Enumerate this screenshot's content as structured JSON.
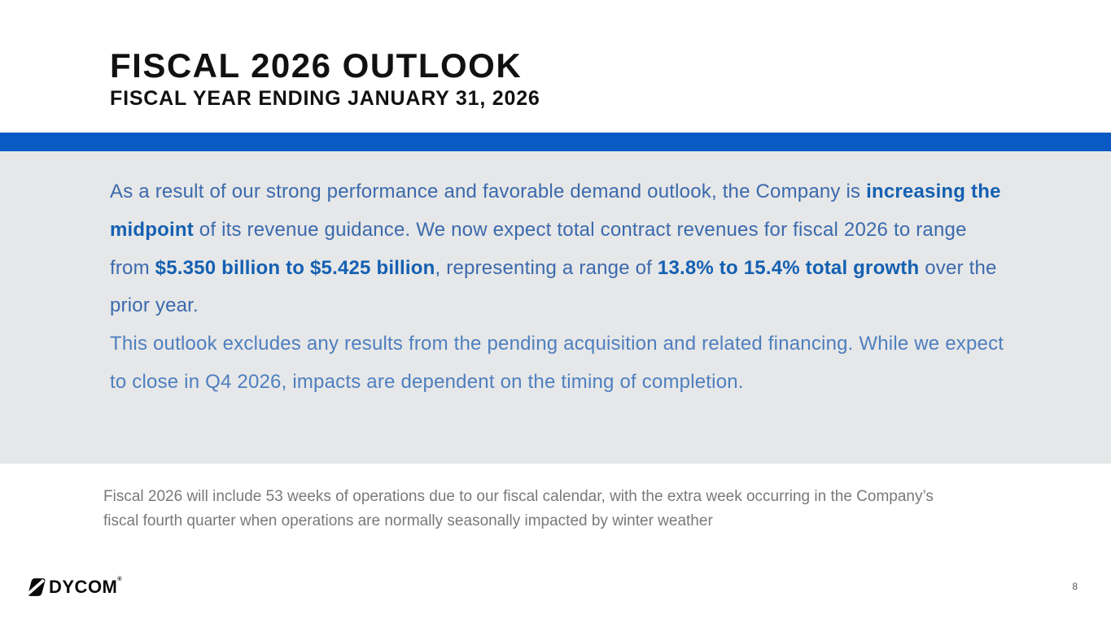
{
  "slide": {
    "title": "FISCAL 2026 OUTLOOK",
    "subtitle": "FISCAL YEAR ENDING JANUARY 31, 2026"
  },
  "highlight": {
    "paragraph1": [
      {
        "text": "As a result of our strong performance and favorable demand outlook, the Company is ",
        "bold": false
      },
      {
        "text": "increasing the midpoint",
        "bold": true
      },
      {
        "text": " of its revenue guidance. We now expect total contract revenues for fiscal 2026 to range from ",
        "bold": false
      },
      {
        "text": "$5.350 billion to $5.425 billion",
        "bold": true
      },
      {
        "text": ", representing a range of ",
        "bold": false
      },
      {
        "text": "13.8% to 15.4% total growth",
        "bold": true
      },
      {
        "text": " over the prior year.",
        "bold": false
      }
    ],
    "paragraph2": "This outlook excludes any results from the pending acquisition and related financing. While we expect to close in Q4 2026, impacts are dependent on the timing of completion."
  },
  "footnote": "Fiscal 2026 will include 53 weeks of operations due to our fiscal calendar, with the extra week occurring in the Company’s fiscal fourth quarter when operations are normally seasonally impacted by winter weather",
  "footer": {
    "logo_text": "DYCOM",
    "trademark": "®",
    "page_number": "8"
  },
  "colors": {
    "accent_bar": "#0a5ac4",
    "band_background": "#e6e7e8",
    "title_text": "#111111",
    "para1_text": "#3b6aad",
    "para1_bold": "#1460b2",
    "para2_text": "#4e7fbf",
    "footnote_text": "#77797c"
  }
}
